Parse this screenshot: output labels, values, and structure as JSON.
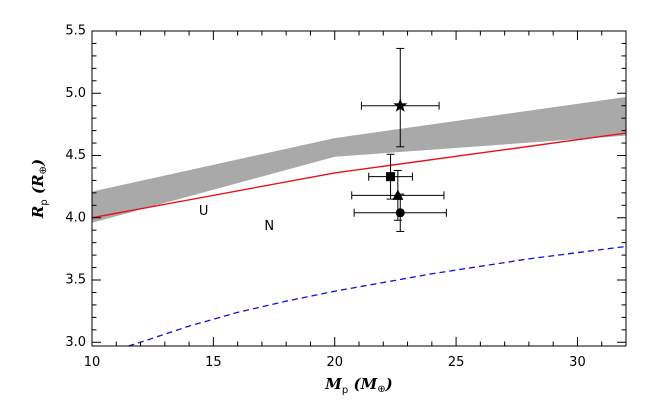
{
  "chart_data": {
    "type": "scatter",
    "xlabel_parts": [
      "M",
      "p",
      " (",
      "M",
      "⊕",
      ")"
    ],
    "ylabel_parts": [
      "R",
      "p",
      " (",
      "R",
      "⊕",
      ")"
    ],
    "xlim": [
      10,
      32
    ],
    "ylim": [
      2.97,
      5.5
    ],
    "x_ticks": [
      10,
      15,
      20,
      25,
      30
    ],
    "y_ticks": [
      3.0,
      3.5,
      4.0,
      4.5,
      5.0,
      5.5
    ],
    "x_tick_labels": [
      "10",
      "15",
      "20",
      "25",
      "30"
    ],
    "y_tick_labels": [
      "3.0",
      "3.5",
      "4.0",
      "4.5",
      "5.0",
      "5.5"
    ],
    "band": {
      "color": "#a9a9a9",
      "upper": [
        [
          10,
          4.21
        ],
        [
          20,
          4.64
        ],
        [
          32,
          4.97
        ]
      ],
      "lower": [
        [
          10,
          3.96
        ],
        [
          20,
          4.49
        ],
        [
          32,
          4.66
        ]
      ]
    },
    "red_line": {
      "color": "#e8121b",
      "points": [
        [
          10,
          4.0
        ],
        [
          20,
          4.36
        ],
        [
          32,
          4.68
        ]
      ]
    },
    "blue_dashed": {
      "color": "#1111cc",
      "points": [
        [
          11.5,
          2.97
        ],
        [
          12,
          3.0
        ],
        [
          14,
          3.13
        ],
        [
          16,
          3.24
        ],
        [
          18,
          3.33
        ],
        [
          20,
          3.41
        ],
        [
          22,
          3.48
        ],
        [
          24,
          3.55
        ],
        [
          26,
          3.61
        ],
        [
          28,
          3.67
        ],
        [
          30,
          3.72
        ],
        [
          32,
          3.77
        ]
      ]
    },
    "annotations": [
      {
        "text": "U",
        "x": 14.6,
        "y": 4.05
      },
      {
        "text": "N",
        "x": 17.3,
        "y": 3.93
      }
    ],
    "points": [
      {
        "marker": "star",
        "x": 22.7,
        "y": 4.9,
        "xerr": [
          1.6,
          1.6
        ],
        "yerr": [
          0.33,
          0.46
        ]
      },
      {
        "marker": "square",
        "x": 22.3,
        "y": 4.33,
        "xerr": [
          0.9,
          0.9
        ],
        "yerr": [
          0.18,
          0.18
        ]
      },
      {
        "marker": "triangle",
        "x": 22.6,
        "y": 4.18,
        "xerr": [
          1.9,
          1.9
        ],
        "yerr": [
          0.2,
          0.2
        ]
      },
      {
        "marker": "circle",
        "x": 22.7,
        "y": 4.04,
        "xerr": [
          1.9,
          1.9
        ],
        "yerr": [
          0.15,
          0.15
        ]
      }
    ]
  }
}
